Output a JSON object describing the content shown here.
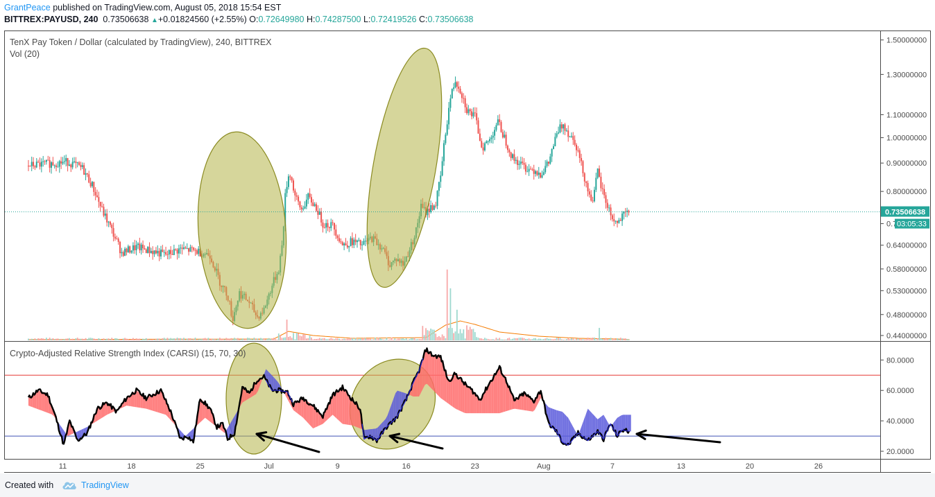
{
  "header": {
    "author": "GrantPeace",
    "published_text": " published on TradingView.com, August 05, 2018 15:54 EST",
    "symbol": "BITTREX:PAYUSD, 240",
    "last": "0.73506638",
    "change_arrow": "▲",
    "change": "+0.01824560 (+2.55%)",
    "open_label": "O:",
    "open": "0.72649980",
    "high_label": "H:",
    "high": "0.74287500",
    "low_label": "L:",
    "low": "0.72419526",
    "close_label": "C:",
    "close": "0.73506638"
  },
  "footer": {
    "created_with": "Created with",
    "brand": "TradingView"
  },
  "colors": {
    "up": "#26a69a",
    "down": "#ef5350",
    "volume_ma": "#f57c00",
    "ellipse_fill": "#b5b549",
    "ellipse_stroke": "#8a8a20",
    "carsi_upper": "#e53935",
    "carsi_lower": "#3f51b5",
    "carsi_red_fill": "#ff6b6b",
    "carsi_blue_fill": "#5b5bdc",
    "price_tag": "#26a69a"
  },
  "chart_data": [
    {
      "type": "candlestick",
      "title": "TenX Pay Token / Dollar (calculated by TradingView), 240, BITTREX",
      "subtitle": "Vol (20)",
      "scale": "log",
      "ylim": [
        0.43,
        1.56
      ],
      "y_ticks": [
        "1.50000000",
        "1.30000000",
        "1.10000000",
        "1.00000000",
        "0.90000000",
        "0.80000000",
        "0.70000000",
        "0.64000000",
        "0.58000000",
        "0.53000000",
        "0.48000000",
        "0.44000000"
      ],
      "y_tick_values": [
        1.5,
        1.3,
        1.1,
        1.0,
        0.9,
        0.8,
        0.7,
        0.64,
        0.58,
        0.53,
        0.48,
        0.44
      ],
      "last_price_label": "0.73506638",
      "countdown_label": "03:05:33",
      "last_price": 0.735,
      "anchors": [
        [
          4,
          0.89
        ],
        [
          8,
          0.905
        ],
        [
          9.5,
          0.88
        ],
        [
          10.5,
          0.82
        ],
        [
          11.5,
          0.74
        ],
        [
          12.5,
          0.68
        ],
        [
          13.5,
          0.62
        ],
        [
          15,
          0.635
        ],
        [
          16.5,
          0.625
        ],
        [
          18,
          0.615
        ],
        [
          19.5,
          0.63
        ],
        [
          21,
          0.625
        ],
        [
          22.5,
          0.615
        ],
        [
          23.5,
          0.55
        ],
        [
          24.3,
          0.52
        ],
        [
          24.8,
          0.47
        ],
        [
          25.5,
          0.525
        ],
        [
          26.5,
          0.505
        ],
        [
          27.3,
          0.475
        ],
        [
          28,
          0.49
        ],
        [
          28.8,
          0.54
        ],
        [
          29.5,
          0.58
        ],
        [
          29.9,
          0.65
        ],
        [
          30.2,
          0.8
        ],
        [
          30.6,
          0.87
        ],
        [
          31.2,
          0.78
        ],
        [
          31.8,
          0.74
        ],
        [
          32.5,
          0.78
        ],
        [
          33.3,
          0.75
        ],
        [
          34,
          0.7
        ],
        [
          35,
          0.695
        ],
        [
          36,
          0.64
        ],
        [
          37,
          0.65
        ],
        [
          38,
          0.64
        ],
        [
          39,
          0.66
        ],
        [
          40,
          0.635
        ],
        [
          40.8,
          0.59
        ],
        [
          41.5,
          0.605
        ],
        [
          42.2,
          0.59
        ],
        [
          43,
          0.64
        ],
        [
          43.5,
          0.68
        ],
        [
          44,
          0.75
        ],
        [
          44.5,
          0.735
        ],
        [
          45.5,
          0.76
        ],
        [
          46,
          0.85
        ],
        [
          46.5,
          1.02
        ],
        [
          47,
          1.18
        ],
        [
          47.5,
          1.27
        ],
        [
          48,
          1.22
        ],
        [
          48.7,
          1.12
        ],
        [
          49.5,
          1.09
        ],
        [
          50.2,
          0.96
        ],
        [
          51,
          0.99
        ],
        [
          51.8,
          1.07
        ],
        [
          52.5,
          1.0
        ],
        [
          53.3,
          0.92
        ],
        [
          54,
          0.9
        ],
        [
          54.8,
          0.88
        ],
        [
          55.6,
          0.875
        ],
        [
          56.2,
          0.86
        ],
        [
          57,
          0.9
        ],
        [
          57.5,
          0.97
        ],
        [
          58,
          1.03
        ],
        [
          58.5,
          1.06
        ],
        [
          59,
          1.02
        ],
        [
          59.7,
          0.985
        ],
        [
          60.5,
          0.87
        ],
        [
          61.2,
          0.78
        ],
        [
          61.6,
          0.78
        ],
        [
          62,
          0.87
        ],
        [
          62.3,
          0.82
        ],
        [
          62.8,
          0.77
        ],
        [
          63.5,
          0.715
        ],
        [
          64,
          0.7
        ],
        [
          64.7,
          0.725
        ],
        [
          65.3,
          0.735
        ]
      ],
      "volume_spikes": [
        [
          30.4,
          26
        ],
        [
          46.6,
          93
        ],
        [
          47.0,
          66
        ],
        [
          47.6,
          30
        ],
        [
          62.2,
          18
        ]
      ],
      "volume_ma_pts": [
        [
          0,
          1
        ],
        [
          29,
          2
        ],
        [
          30.5,
          13
        ],
        [
          33,
          7
        ],
        [
          37,
          3
        ],
        [
          44.5,
          4
        ],
        [
          46.5,
          22
        ],
        [
          48,
          28
        ],
        [
          49.5,
          23
        ],
        [
          52,
          12
        ],
        [
          56,
          6
        ],
        [
          60,
          3
        ],
        [
          64,
          2
        ],
        [
          65.3,
          1
        ]
      ]
    },
    {
      "type": "line",
      "title": "Crypto-Adjusted Relative Strength Index (CARSI) (15, 70, 30)",
      "ylim": [
        15,
        92
      ],
      "y_ticks": [
        "80.0000",
        "60.0000",
        "40.0000",
        "20.0000"
      ],
      "y_tick_values": [
        80,
        60,
        40,
        20
      ],
      "upper_band": 70,
      "lower_band": 30,
      "carsi_anchors": [
        [
          4,
          55
        ],
        [
          5,
          60
        ],
        [
          6,
          57
        ],
        [
          6.8,
          42
        ],
        [
          7.6,
          24
        ],
        [
          8.2,
          40
        ],
        [
          9,
          27
        ],
        [
          10,
          32
        ],
        [
          11,
          48
        ],
        [
          12,
          52
        ],
        [
          13,
          46
        ],
        [
          14,
          55
        ],
        [
          15,
          60
        ],
        [
          16,
          55
        ],
        [
          17.5,
          60
        ],
        [
          18.5,
          46
        ],
        [
          19.5,
          28
        ],
        [
          20.2,
          30
        ],
        [
          20.8,
          26
        ],
        [
          21.5,
          55
        ],
        [
          22.5,
          48
        ],
        [
          23.2,
          36
        ],
        [
          23.8,
          38
        ],
        [
          24.3,
          28
        ],
        [
          25,
          32
        ],
        [
          25.8,
          62
        ],
        [
          26.5,
          58
        ],
        [
          27.3,
          67
        ],
        [
          28,
          69
        ],
        [
          28.8,
          60
        ],
        [
          29.5,
          60
        ],
        [
          30.4,
          59
        ],
        [
          31,
          51
        ],
        [
          32,
          55
        ],
        [
          33,
          50
        ],
        [
          34,
          43
        ],
        [
          35,
          57
        ],
        [
          36,
          62
        ],
        [
          37,
          54
        ],
        [
          37.8,
          48
        ],
        [
          38.2,
          28
        ],
        [
          38.8,
          30
        ],
        [
          39.5,
          27
        ],
        [
          40.5,
          36
        ],
        [
          41.5,
          42
        ],
        [
          42.5,
          54
        ],
        [
          43.2,
          65
        ],
        [
          43.8,
          73
        ],
        [
          44.5,
          87
        ],
        [
          45.2,
          83
        ],
        [
          46,
          82
        ],
        [
          46.8,
          66
        ],
        [
          47.5,
          71
        ],
        [
          48.5,
          64
        ],
        [
          49.2,
          60
        ],
        [
          50,
          54
        ],
        [
          51,
          65
        ],
        [
          52,
          75
        ],
        [
          52.8,
          65
        ],
        [
          53.5,
          53
        ],
        [
          54.5,
          58
        ],
        [
          55.5,
          53
        ],
        [
          56.2,
          60
        ],
        [
          57,
          38
        ],
        [
          57.8,
          33
        ],
        [
          58.4,
          26
        ],
        [
          59,
          24
        ],
        [
          60,
          32
        ],
        [
          61,
          27
        ],
        [
          62,
          33
        ],
        [
          62.6,
          28
        ],
        [
          63.3,
          38
        ],
        [
          64,
          30
        ],
        [
          64.5,
          34
        ],
        [
          65.3,
          33
        ]
      ],
      "shadow_anchors": [
        [
          4,
          50
        ],
        [
          6.5,
          44
        ],
        [
          8,
          30
        ],
        [
          10,
          36
        ],
        [
          12,
          44
        ],
        [
          14,
          50
        ],
        [
          16,
          48
        ],
        [
          18,
          44
        ],
        [
          20,
          30
        ],
        [
          22,
          42
        ],
        [
          24,
          32
        ],
        [
          25.8,
          52
        ],
        [
          27.3,
          58
        ],
        [
          28.2,
          74
        ],
        [
          28.8,
          70
        ],
        [
          29.5,
          65
        ],
        [
          31,
          47
        ],
        [
          32,
          42
        ],
        [
          33,
          35
        ],
        [
          34,
          38
        ],
        [
          35,
          44
        ],
        [
          36,
          38
        ],
        [
          37,
          37
        ],
        [
          38.2,
          34
        ],
        [
          39.5,
          35
        ],
        [
          40.5,
          42
        ],
        [
          41.5,
          60
        ],
        [
          42.5,
          58
        ],
        [
          43.2,
          56
        ],
        [
          43.8,
          56
        ],
        [
          44.5,
          65
        ],
        [
          46,
          55
        ],
        [
          47.5,
          48
        ],
        [
          48.5,
          45
        ],
        [
          50,
          45
        ],
        [
          51,
          45
        ],
        [
          52,
          45
        ],
        [
          53.5,
          48
        ],
        [
          55.5,
          46
        ],
        [
          56.2,
          55
        ],
        [
          57,
          49
        ],
        [
          57.8,
          47
        ],
        [
          58.4,
          46
        ],
        [
          59,
          42
        ],
        [
          60,
          30
        ],
        [
          61,
          48
        ],
        [
          62,
          41
        ],
        [
          62.6,
          44
        ],
        [
          63.3,
          36
        ],
        [
          64,
          42
        ],
        [
          64.5,
          44
        ],
        [
          65.3,
          44
        ]
      ],
      "x_ticks": [
        "11",
        "18",
        "25",
        "Jul",
        "9",
        "16",
        "23",
        "Aug",
        "7",
        "13",
        "20",
        "26"
      ],
      "x_tick_pos": [
        7.5,
        14.5,
        21.5,
        28.5,
        35.5,
        42.5,
        49.5,
        56.5,
        63.5,
        70.5,
        77.5,
        84.5
      ]
    }
  ]
}
